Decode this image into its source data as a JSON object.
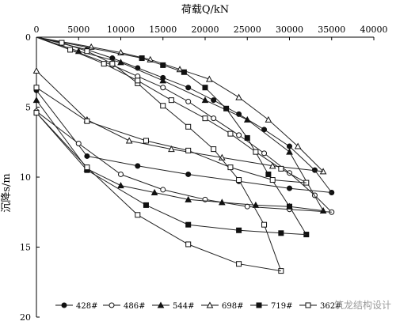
{
  "chart_data": {
    "type": "line",
    "xlabel": "荷载Q/kN",
    "ylabel": "沉降s/m",
    "xlim": [
      0,
      40000
    ],
    "ylim": [
      0,
      20
    ],
    "x_ticks": [
      0,
      5000,
      10000,
      15000,
      20000,
      25000,
      30000,
      35000,
      40000
    ],
    "y_ticks": [
      0,
      5,
      10,
      15,
      20
    ],
    "x_tick_labels": [
      "0",
      "5000",
      "10000",
      "15000",
      "20000",
      "25000",
      "30000",
      "35000",
      "40000"
    ],
    "y_tick_labels": [
      "0",
      "5",
      "10",
      "15",
      "20"
    ],
    "grid": false,
    "y_axis_inverted": true,
    "x_axis_position": "top",
    "legend_position": "bottom",
    "series": [
      {
        "name": "428#",
        "marker": "circle-filled",
        "loading": {
          "x": [
            0,
            6000,
            9000,
            12000,
            15000,
            18000,
            21000,
            24000,
            27000,
            30000,
            33000,
            35000
          ],
          "y": [
            0,
            0.9,
            1.5,
            2.2,
            2.9,
            3.6,
            4.5,
            5.5,
            6.6,
            7.8,
            9.5,
            11.1
          ]
        },
        "unloading": {
          "x": [
            35000,
            30000,
            24000,
            18000,
            12000,
            6000,
            0
          ],
          "y": [
            11.1,
            10.8,
            10.3,
            9.8,
            9.2,
            8.5,
            3.8
          ]
        }
      },
      {
        "name": "486#",
        "marker": "circle-open",
        "loading": {
          "x": [
            0,
            9000,
            12000,
            15000,
            18000,
            21000,
            24000,
            27000,
            30000,
            33000,
            35000
          ],
          "y": [
            0,
            2.0,
            2.8,
            3.6,
            4.6,
            5.8,
            7.0,
            8.3,
            9.7,
            11.3,
            12.5
          ]
        },
        "unloading": {
          "x": [
            35000,
            30000,
            25000,
            20000,
            15000,
            10000,
            5000,
            0
          ],
          "y": [
            12.5,
            12.3,
            12.1,
            11.6,
            10.9,
            9.8,
            7.6,
            5.3
          ]
        }
      },
      {
        "name": "544#",
        "marker": "triangle-filled",
        "loading": {
          "x": [
            0,
            5000,
            10000,
            15000,
            20000,
            25000,
            30000,
            34000
          ],
          "y": [
            0,
            1.0,
            1.8,
            3.1,
            4.5,
            5.9,
            8.2,
            12.4
          ]
        },
        "unloading": {
          "x": [
            34000,
            30000,
            26000,
            22000,
            18000,
            14000,
            10000,
            6000,
            0
          ],
          "y": [
            12.4,
            12.1,
            12.0,
            11.8,
            11.6,
            11.1,
            10.6,
            9.4,
            4.5
          ]
        }
      },
      {
        "name": "698#",
        "marker": "triangle-open",
        "loading": {
          "x": [
            0,
            6500,
            10000,
            13500,
            17000,
            20500,
            24000,
            27500,
            31000,
            34000
          ],
          "y": [
            0,
            0.7,
            1.1,
            1.6,
            2.3,
            3.0,
            4.3,
            5.9,
            7.8,
            9.6
          ]
        },
        "unloading": {
          "x": [
            34000,
            28000,
            22000,
            16000,
            11000,
            6000,
            0
          ],
          "y": [
            9.6,
            9.2,
            8.6,
            8.0,
            7.4,
            5.9,
            2.4
          ]
        }
      },
      {
        "name": "719#",
        "marker": "square-filled",
        "loading": {
          "x": [
            0,
            12500,
            15000,
            17500,
            20000,
            22500,
            25000,
            27500,
            30000,
            32000
          ],
          "y": [
            0,
            1.5,
            2.0,
            2.5,
            3.6,
            5.1,
            7.2,
            9.8,
            12.1,
            14.1
          ]
        },
        "unloading": {
          "x": [
            32000,
            29000,
            24000,
            18000,
            13000,
            6000,
            0
          ],
          "y": [
            14.1,
            14.0,
            13.8,
            13.4,
            12.0,
            9.5,
            5.4
          ]
        }
      },
      {
        "name": "362#",
        "marker": "square-open",
        "loading": {
          "x": [
            0,
            3000,
            6000,
            9000,
            12000,
            15000,
            18000,
            21000,
            24000,
            27000,
            29000
          ],
          "y": [
            0,
            0.4,
            1.0,
            1.9,
            3.3,
            4.9,
            6.4,
            8.0,
            10.2,
            13.4,
            16.7
          ]
        },
        "unloading": {
          "x": [
            29000,
            24000,
            18000,
            12000,
            6000,
            0
          ],
          "y": [
            16.7,
            16.2,
            14.8,
            12.7,
            9.3,
            5.4
          ]
        }
      },
      {
        "name": "",
        "marker": "square-open",
        "loading": {
          "x": [
            0,
            4000,
            8000,
            12000,
            16000,
            20000,
            23000,
            26000,
            29000,
            32000
          ],
          "y": [
            0,
            0.9,
            1.9,
            3.1,
            4.5,
            5.8,
            6.9,
            8.2,
            9.4,
            10.4
          ]
        },
        "unloading": {
          "x": [
            32000,
            28000,
            23000,
            18000,
            13000,
            6000,
            0
          ],
          "y": [
            10.4,
            10.2,
            9.3,
            8.1,
            7.4,
            6.0,
            3.6
          ]
        }
      }
    ]
  },
  "watermark": "筑龙结构设计"
}
